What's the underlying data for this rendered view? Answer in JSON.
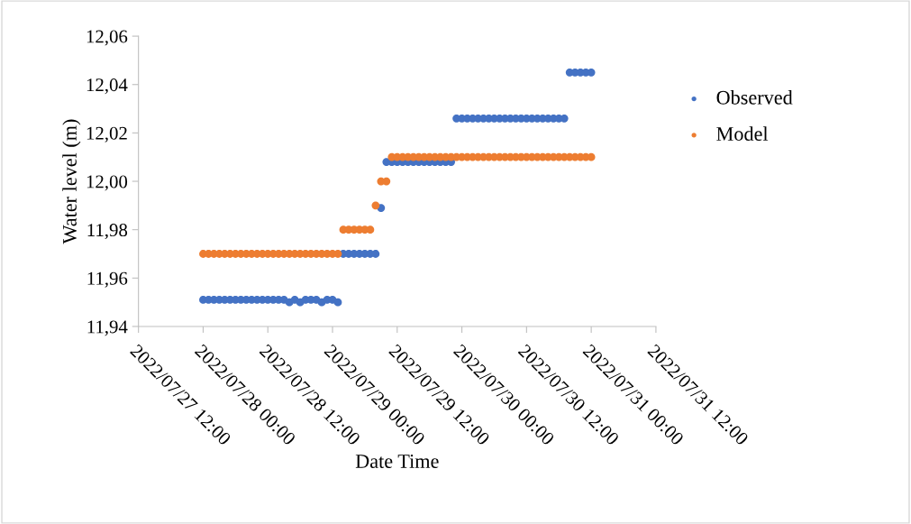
{
  "chart_data": {
    "type": "scatter",
    "xlabel": "Date Time",
    "ylabel": "Water level (m)",
    "x": [
      "2022-07-28T00:00",
      "2022-07-28T01:00",
      "2022-07-28T02:00",
      "2022-07-28T03:00",
      "2022-07-28T04:00",
      "2022-07-28T05:00",
      "2022-07-28T06:00",
      "2022-07-28T07:00",
      "2022-07-28T08:00",
      "2022-07-28T09:00",
      "2022-07-28T10:00",
      "2022-07-28T11:00",
      "2022-07-28T12:00",
      "2022-07-28T13:00",
      "2022-07-28T14:00",
      "2022-07-28T15:00",
      "2022-07-28T16:00",
      "2022-07-28T17:00",
      "2022-07-28T18:00",
      "2022-07-28T19:00",
      "2022-07-28T20:00",
      "2022-07-28T21:00",
      "2022-07-28T22:00",
      "2022-07-28T23:00",
      "2022-07-29T00:00",
      "2022-07-29T01:00",
      "2022-07-29T02:00",
      "2022-07-29T03:00",
      "2022-07-29T04:00",
      "2022-07-29T05:00",
      "2022-07-29T06:00",
      "2022-07-29T07:00",
      "2022-07-29T08:00",
      "2022-07-29T09:00",
      "2022-07-29T10:00",
      "2022-07-29T11:00",
      "2022-07-29T12:00",
      "2022-07-29T13:00",
      "2022-07-29T14:00",
      "2022-07-29T15:00",
      "2022-07-29T16:00",
      "2022-07-29T17:00",
      "2022-07-29T18:00",
      "2022-07-29T19:00",
      "2022-07-29T20:00",
      "2022-07-29T21:00",
      "2022-07-29T22:00",
      "2022-07-29T23:00",
      "2022-07-30T00:00",
      "2022-07-30T01:00",
      "2022-07-30T02:00",
      "2022-07-30T03:00",
      "2022-07-30T04:00",
      "2022-07-30T05:00",
      "2022-07-30T06:00",
      "2022-07-30T07:00",
      "2022-07-30T08:00",
      "2022-07-30T09:00",
      "2022-07-30T10:00",
      "2022-07-30T11:00",
      "2022-07-30T12:00",
      "2022-07-30T13:00",
      "2022-07-30T14:00",
      "2022-07-30T15:00",
      "2022-07-30T16:00",
      "2022-07-30T17:00",
      "2022-07-30T18:00",
      "2022-07-30T19:00",
      "2022-07-30T20:00",
      "2022-07-30T21:00",
      "2022-07-30T22:00",
      "2022-07-30T23:00",
      "2022-07-31T00:00"
    ],
    "series": [
      {
        "name": "Observed",
        "color": "#4472c4",
        "values": [
          11.951,
          11.951,
          11.951,
          11.951,
          11.951,
          11.951,
          11.951,
          11.951,
          11.951,
          11.951,
          11.951,
          11.951,
          11.951,
          11.951,
          11.951,
          11.951,
          11.95,
          11.951,
          11.95,
          11.951,
          11.951,
          11.951,
          11.95,
          11.951,
          11.951,
          11.95,
          11.97,
          11.97,
          11.97,
          11.97,
          11.97,
          11.97,
          11.97,
          11.989,
          12.008,
          12.008,
          12.008,
          12.008,
          12.008,
          12.008,
          12.008,
          12.008,
          12.008,
          12.008,
          12.008,
          12.008,
          12.008,
          12.026,
          12.026,
          12.026,
          12.026,
          12.026,
          12.026,
          12.026,
          12.026,
          12.026,
          12.026,
          12.026,
          12.026,
          12.026,
          12.026,
          12.026,
          12.026,
          12.026,
          12.026,
          12.026,
          12.026,
          12.026,
          12.045,
          12.045,
          12.045,
          12.045,
          12.045
        ]
      },
      {
        "name": "Model",
        "color": "#ed7d31",
        "values": [
          11.97,
          11.97,
          11.97,
          11.97,
          11.97,
          11.97,
          11.97,
          11.97,
          11.97,
          11.97,
          11.97,
          11.97,
          11.97,
          11.97,
          11.97,
          11.97,
          11.97,
          11.97,
          11.97,
          11.97,
          11.97,
          11.97,
          11.97,
          11.97,
          11.97,
          11.97,
          11.98,
          11.98,
          11.98,
          11.98,
          11.98,
          11.98,
          11.99,
          12.0,
          12.0,
          12.01,
          12.01,
          12.01,
          12.01,
          12.01,
          12.01,
          12.01,
          12.01,
          12.01,
          12.01,
          12.01,
          12.01,
          12.01,
          12.01,
          12.01,
          12.01,
          12.01,
          12.01,
          12.01,
          12.01,
          12.01,
          12.01,
          12.01,
          12.01,
          12.01,
          12.01,
          12.01,
          12.01,
          12.01,
          12.01,
          12.01,
          12.01,
          12.01,
          12.01,
          12.01,
          12.01,
          12.01,
          12.01
        ]
      }
    ],
    "xlim": [
      "2022-07-27T12:00",
      "2022-07-31T12:00"
    ],
    "xticks": [
      {
        "value": "2022-07-27T12:00",
        "label": "2022/07/27 12:00"
      },
      {
        "value": "2022-07-28T00:00",
        "label": "2022/07/28 00:00"
      },
      {
        "value": "2022-07-28T12:00",
        "label": "2022/07/28 12:00"
      },
      {
        "value": "2022-07-29T00:00",
        "label": "2022/07/29 00:00"
      },
      {
        "value": "2022-07-29T12:00",
        "label": "2022/07/29 12:00"
      },
      {
        "value": "2022-07-30T00:00",
        "label": "2022/07/30 00:00"
      },
      {
        "value": "2022-07-30T12:00",
        "label": "2022/07/30 12:00"
      },
      {
        "value": "2022-07-31T00:00",
        "label": "2022/07/31 00:00"
      },
      {
        "value": "2022-07-31T12:00",
        "label": "2022/07/31 12:00"
      }
    ],
    "ylim": [
      11.94,
      12.06
    ],
    "yticks": [
      {
        "value": 11.94,
        "label": "11,94"
      },
      {
        "value": 11.96,
        "label": "11,96"
      },
      {
        "value": 11.98,
        "label": "11,98"
      },
      {
        "value": 12.0,
        "label": "12,00"
      },
      {
        "value": 12.02,
        "label": "12,02"
      },
      {
        "value": 12.04,
        "label": "12,04"
      },
      {
        "value": 12.06,
        "label": "12,06"
      }
    ],
    "grid": false,
    "legend": "right",
    "marker": "circle"
  }
}
